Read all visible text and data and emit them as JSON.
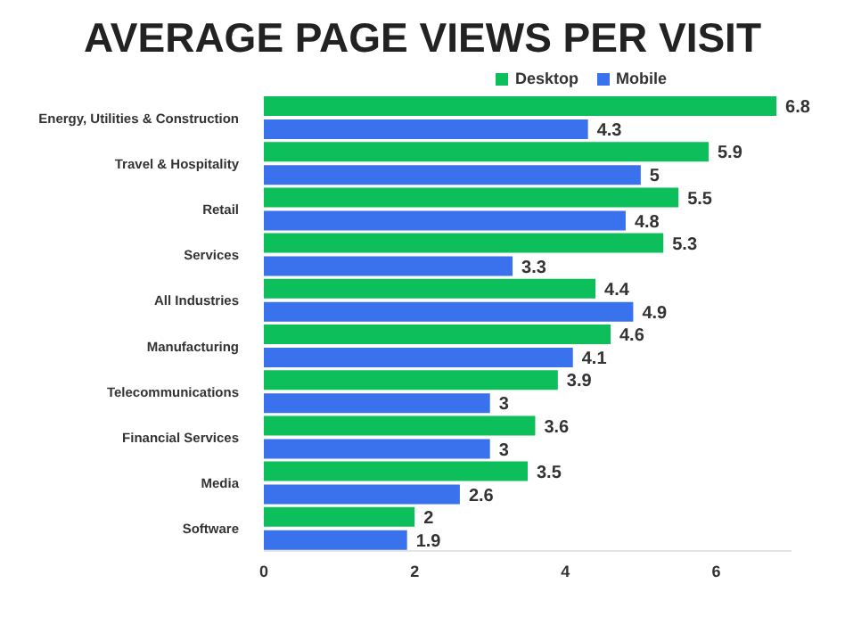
{
  "chart_data": {
    "type": "bar",
    "orientation": "horizontal",
    "title": "AVERAGE PAGE VIEWS PER VISIT",
    "categories": [
      "Energy, Utilities & Construction",
      "Travel & Hospitality",
      "Retail",
      "Services",
      "All Industries",
      "Manufacturing",
      "Telecommunications",
      "Financial Services",
      "Media",
      "Software"
    ],
    "series": [
      {
        "name": "Desktop",
        "color": "#0dbf5a",
        "values": [
          6.8,
          5.9,
          5.5,
          5.3,
          4.4,
          4.6,
          3.9,
          3.6,
          3.5,
          2
        ]
      },
      {
        "name": "Mobile",
        "color": "#3a72ee",
        "values": [
          4.3,
          5,
          4.8,
          3.3,
          4.9,
          4.1,
          3,
          3,
          2.6,
          1.9
        ]
      }
    ],
    "xlim": [
      0,
      7
    ],
    "xticks": [
      0,
      2,
      4,
      6
    ],
    "grid": false,
    "legend": "top right",
    "data_labels": true
  }
}
